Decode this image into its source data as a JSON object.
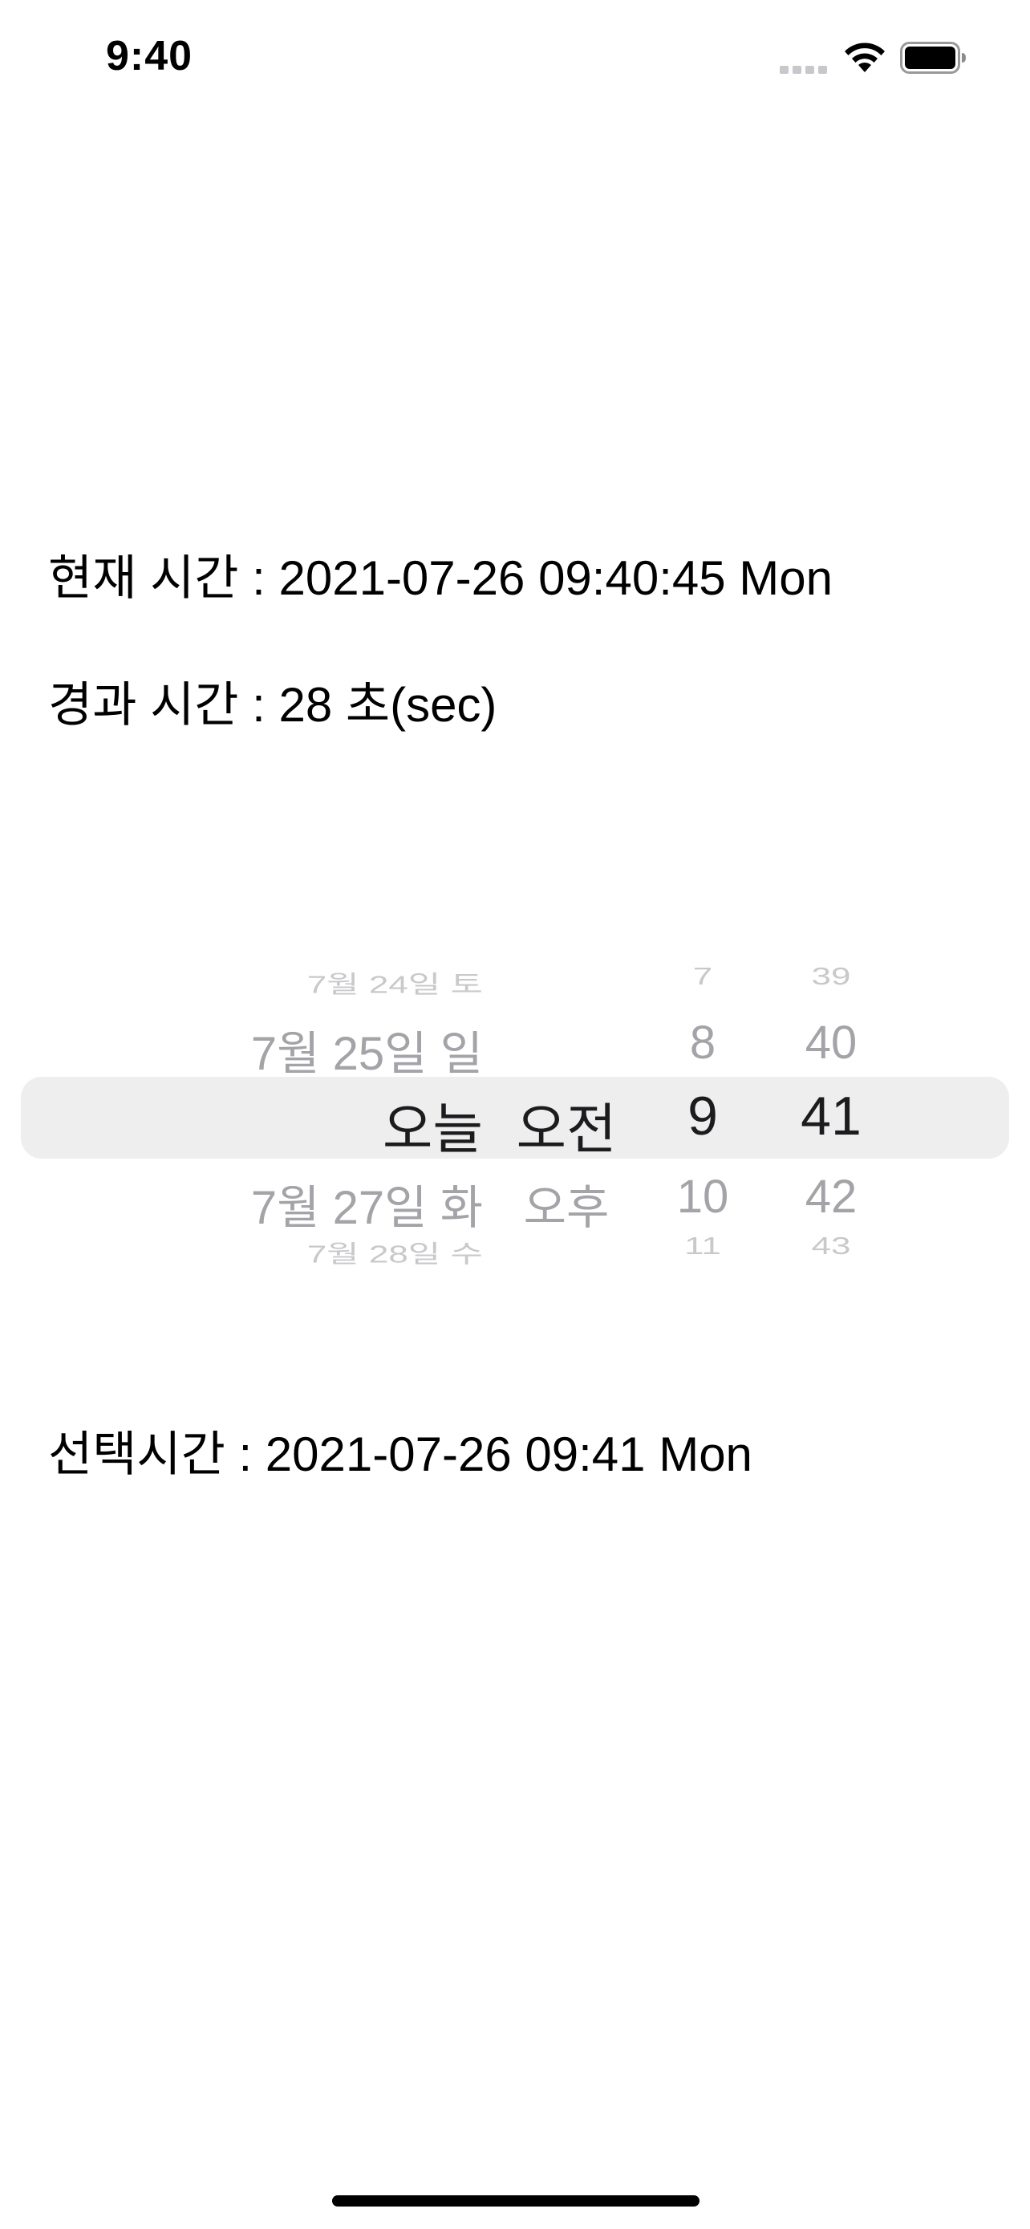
{
  "status_bar": {
    "time": "9:40",
    "icons": [
      "cellular-signal-icon",
      "wifi-icon",
      "battery-icon"
    ]
  },
  "current_time": {
    "label": "현재 시간 : 2021-07-26 09:40:45 Mon"
  },
  "elapsed_time": {
    "label": "경과 시간 : 28 초(sec)"
  },
  "picker": {
    "dates": [
      "7월 24일 토",
      "7월 25일 일",
      "오늘",
      "7월 27일 화",
      "7월 28일 수"
    ],
    "ampm": [
      "",
      "",
      "오전",
      "오후",
      ""
    ],
    "hours": [
      "7",
      "8",
      "9",
      "10",
      "11"
    ],
    "minutes": [
      "39",
      "40",
      "41",
      "42",
      "43"
    ],
    "selected_index": 2
  },
  "selected_time": {
    "label": "선택시간 : 2021-07-26 09:41 Mon"
  },
  "colors": {
    "highlight": "#eeeeef",
    "text": "#000000",
    "picker_dim": "#a3a3a8"
  }
}
